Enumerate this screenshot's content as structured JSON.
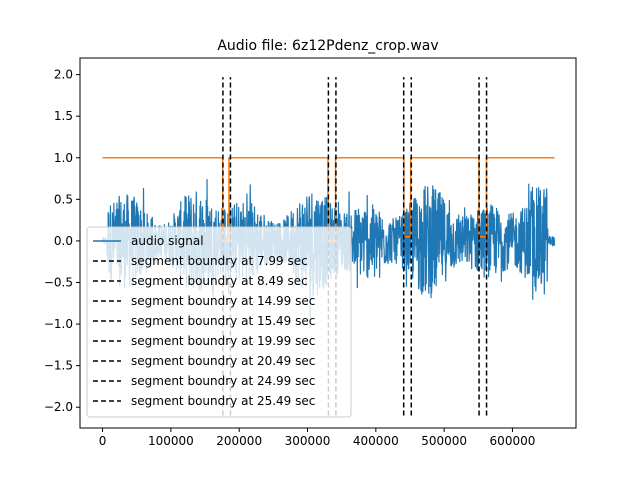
{
  "chart_data": {
    "type": "line",
    "title": "Audio file: 6z12Pdenz_crop.wav",
    "xlabel": "",
    "ylabel": "",
    "xlim": [
      -33000,
      693000
    ],
    "ylim": [
      -2.25,
      2.2
    ],
    "x_ticks": [
      0,
      100000,
      200000,
      300000,
      400000,
      500000,
      600000
    ],
    "x_tick_labels": [
      "0",
      "100000",
      "200000",
      "300000",
      "400000",
      "500000",
      "600000"
    ],
    "y_ticks": [
      2.0,
      1.5,
      1.0,
      0.5,
      0.0,
      -0.5,
      -1.0,
      -1.5,
      -2.0
    ],
    "y_tick_labels": [
      "2.0",
      "1.5",
      "1.0",
      "0.5",
      "0.0",
      "−0.5",
      "−1.0",
      "−1.5",
      "−2.0"
    ],
    "grid": false,
    "legend_position": "lower-left",
    "audio_signal": {
      "name": "audio signal",
      "color": "#1f77b4",
      "x_range": [
        0,
        661500
      ],
      "approx_envelope_max": 0.95,
      "approx_envelope_min": -1.05
    },
    "segment_mask": {
      "color": "#ff7f0e",
      "x": [
        0,
        176000,
        176000,
        185000,
        185000,
        330000,
        330000,
        341000,
        341000,
        441000,
        441000,
        451000,
        451000,
        551000,
        551000,
        562000,
        562000,
        661500
      ],
      "y": [
        1.0,
        1.0,
        0.0,
        0.0,
        1.0,
        1.0,
        0.0,
        0.0,
        1.0,
        1.0,
        0.05,
        0.05,
        1.0,
        1.0,
        0.05,
        0.05,
        1.0,
        1.0
      ]
    },
    "boundaries": [
      {
        "label": "segment boundry at 7.99 sec",
        "x": 176200
      },
      {
        "label": "segment boundry at 8.49 sec",
        "x": 187200
      },
      {
        "label": "segment boundry at 14.99 sec",
        "x": 330600
      },
      {
        "label": "segment boundry at 15.49 sec",
        "x": 341600
      },
      {
        "label": "segment boundry at 19.99 sec",
        "x": 440800
      },
      {
        "label": "segment boundry at 20.49 sec",
        "x": 451900
      },
      {
        "label": "segment boundry at 24.99 sec",
        "x": 551100
      },
      {
        "label": "segment boundry at 25.49 sec",
        "x": 562100
      }
    ],
    "boundary_y_range": [
      -2.1,
      1.97
    ],
    "boundary_color": "#000000"
  }
}
